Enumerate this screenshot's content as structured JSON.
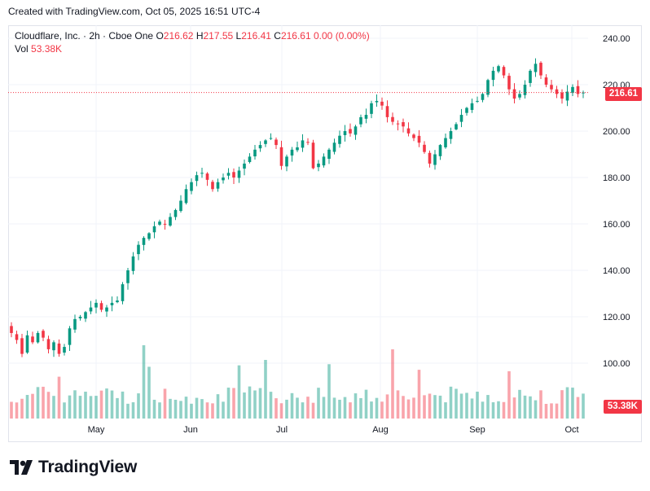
{
  "header": {
    "credit": "Created with TradingView.com, Oct 05, 2025 16:51 UTC-4"
  },
  "legend": {
    "symbol": "Cloudflare, Inc. · 2h · Cboe One",
    "open_label": "O",
    "open": "216.62",
    "high_label": "H",
    "high": "217.55",
    "low_label": "L",
    "low": "216.41",
    "close_label": "C",
    "close": "216.61",
    "change": "0.00 (0.00%)",
    "vol_label": "Vol",
    "vol": "53.38K"
  },
  "price_tag": "216.61",
  "volume_tag": "53.38K",
  "brand": {
    "name": "TradingView"
  },
  "colors": {
    "up": "#089981",
    "down": "#f23645",
    "grid": "#f0f3fa",
    "text": "#131722"
  },
  "chart_data": {
    "type": "candlestick",
    "y_ticks": [
      "240.00",
      "220.00",
      "200.00",
      "180.00",
      "160.00",
      "140.00",
      "120.00",
      "100.00"
    ],
    "x_ticks": [
      "May",
      "Jun",
      "Jul",
      "Aug",
      "Sep",
      "Oct"
    ],
    "ylim": [
      80,
      247
    ],
    "last_price": 216.61,
    "closes": [
      113,
      110,
      104,
      112,
      109,
      113,
      111,
      106,
      109,
      104,
      107,
      115,
      119,
      120,
      122,
      124,
      126,
      123,
      124,
      126,
      127,
      134,
      140,
      146,
      151,
      154,
      156,
      159,
      161,
      160,
      163,
      166,
      170,
      175,
      178,
      181,
      182,
      179,
      175,
      178,
      180,
      182,
      180,
      183,
      186,
      189,
      192,
      194,
      196,
      197,
      194,
      185,
      189,
      192,
      193,
      196,
      195,
      184,
      186,
      189,
      192,
      195,
      198,
      200,
      199,
      202,
      206,
      207,
      212,
      213,
      211,
      206,
      204,
      203,
      202,
      199,
      197,
      195,
      191,
      186,
      190,
      194,
      197,
      200,
      203,
      207,
      210,
      212,
      213,
      216,
      222,
      226,
      228,
      224,
      218,
      214,
      216,
      220,
      226,
      229,
      224,
      220,
      218,
      216,
      214,
      217,
      219,
      216,
      216.61
    ],
    "volume_note": "Vol 53.38K"
  }
}
